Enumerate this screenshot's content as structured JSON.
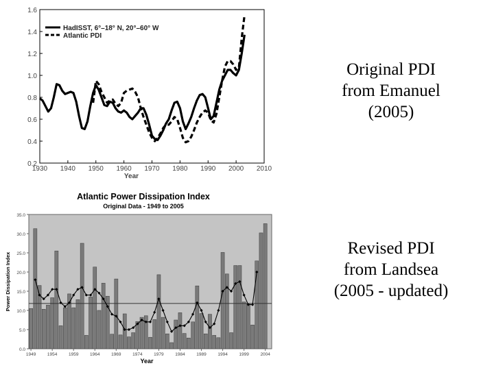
{
  "captions": {
    "top": [
      "Original PDI",
      "from Emanuel",
      "(2005)"
    ],
    "bottom": [
      "Revised PDI",
      "from Landsea",
      "(2005 - updated)"
    ]
  },
  "chart_data": [
    {
      "type": "line",
      "title": "",
      "xlabel": "Year",
      "ylabel": "",
      "xlim": [
        1930,
        2010
      ],
      "ylim": [
        0.2,
        1.6
      ],
      "xticks": [
        "1930",
        "1940",
        "1950",
        "1960",
        "1970",
        "1980",
        "1990",
        "2000",
        "2010"
      ],
      "yticks": [
        "0.2",
        "0.4",
        "0.6",
        "0.8",
        "1.0",
        "1.2",
        "1.4",
        "1.6"
      ],
      "legend_position": "top-left",
      "series": [
        {
          "name": "HadISST, 6°–18° N, 20°–60° W",
          "style": "solid",
          "x": [
            1930,
            1931,
            1932,
            1933,
            1934,
            1935,
            1936,
            1937,
            1938,
            1939,
            1940,
            1941,
            1942,
            1943,
            1944,
            1945,
            1946,
            1947,
            1948,
            1949,
            1950,
            1951,
            1952,
            1953,
            1954,
            1955,
            1956,
            1957,
            1958,
            1959,
            1960,
            1961,
            1962,
            1963,
            1964,
            1965,
            1966,
            1967,
            1968,
            1969,
            1970,
            1971,
            1972,
            1973,
            1974,
            1975,
            1976,
            1977,
            1978,
            1979,
            1980,
            1981,
            1982,
            1983,
            1984,
            1985,
            1986,
            1987,
            1988,
            1989,
            1990,
            1991,
            1992,
            1993,
            1994,
            1995,
            1996,
            1997,
            1998,
            1999,
            2000,
            2001,
            2002,
            2003
          ],
          "y": [
            0.79,
            0.77,
            0.72,
            0.67,
            0.7,
            0.8,
            0.92,
            0.91,
            0.86,
            0.83,
            0.84,
            0.85,
            0.84,
            0.76,
            0.63,
            0.52,
            0.51,
            0.58,
            0.72,
            0.84,
            0.91,
            0.87,
            0.8,
            0.73,
            0.72,
            0.76,
            0.75,
            0.7,
            0.67,
            0.66,
            0.68,
            0.66,
            0.62,
            0.6,
            0.63,
            0.66,
            0.7,
            0.7,
            0.64,
            0.55,
            0.45,
            0.42,
            0.41,
            0.45,
            0.5,
            0.56,
            0.6,
            0.68,
            0.75,
            0.76,
            0.7,
            0.58,
            0.51,
            0.56,
            0.62,
            0.7,
            0.77,
            0.82,
            0.83,
            0.8,
            0.7,
            0.6,
            0.63,
            0.75,
            0.87,
            0.95,
            1.0,
            1.05,
            1.05,
            1.02,
            1.0,
            1.05,
            1.2,
            1.37
          ]
        },
        {
          "name": "Atlantic PDI",
          "style": "dashed",
          "x": [
            1949,
            1950,
            1951,
            1952,
            1953,
            1954,
            1955,
            1956,
            1957,
            1958,
            1959,
            1960,
            1961,
            1962,
            1963,
            1964,
            1965,
            1966,
            1967,
            1968,
            1969,
            1970,
            1971,
            1972,
            1973,
            1974,
            1975,
            1976,
            1977,
            1978,
            1979,
            1980,
            1981,
            1982,
            1983,
            1984,
            1985,
            1986,
            1987,
            1988,
            1989,
            1990,
            1991,
            1992,
            1993,
            1994,
            1995,
            1996,
            1997,
            1998,
            1999,
            2000,
            2001,
            2002,
            2003
          ],
          "y": [
            0.75,
            0.95,
            0.92,
            0.85,
            0.8,
            0.75,
            0.77,
            0.78,
            0.74,
            0.72,
            0.75,
            0.84,
            0.86,
            0.87,
            0.88,
            0.85,
            0.8,
            0.7,
            0.62,
            0.55,
            0.48,
            0.43,
            0.4,
            0.43,
            0.47,
            0.52,
            0.55,
            0.55,
            0.58,
            0.62,
            0.6,
            0.52,
            0.43,
            0.39,
            0.4,
            0.44,
            0.5,
            0.57,
            0.62,
            0.66,
            0.68,
            0.66,
            0.59,
            0.57,
            0.65,
            0.8,
            0.95,
            1.08,
            1.13,
            1.13,
            1.1,
            1.05,
            1.07,
            1.34,
            1.55
          ]
        }
      ]
    },
    {
      "type": "bar",
      "title": "Atlantic Power Dissipation Index",
      "subtitle": "Original Data - 1949 to 2005",
      "xlabel": "Year",
      "ylabel": "Power Dissipation Index",
      "xlim": [
        1949,
        2005
      ],
      "ylim": [
        0,
        35
      ],
      "xticks": [
        "1949",
        "1954",
        "1959",
        "1964",
        "1969",
        "1974",
        "1979",
        "1984",
        "1989",
        "1994",
        "1999",
        "2004"
      ],
      "yticks": [
        "0.0",
        "5.0",
        "10.0",
        "15.0",
        "20.0",
        "25.0",
        "30.0",
        "35.0"
      ],
      "mean_line": 11.8,
      "categories": [
        1949,
        1950,
        1951,
        1952,
        1953,
        1954,
        1955,
        1956,
        1957,
        1958,
        1959,
        1960,
        1961,
        1962,
        1963,
        1964,
        1965,
        1966,
        1967,
        1968,
        1969,
        1970,
        1971,
        1972,
        1973,
        1974,
        1975,
        1976,
        1977,
        1978,
        1979,
        1980,
        1981,
        1982,
        1983,
        1984,
        1985,
        1986,
        1987,
        1988,
        1989,
        1990,
        1991,
        1992,
        1993,
        1994,
        1995,
        1996,
        1997,
        1998,
        1999,
        2000,
        2001,
        2002,
        2003,
        2004,
        2005
      ],
      "series": [
        {
          "name": "",
          "values": [
            10.5,
            31.3,
            16.5,
            10.3,
            11.4,
            13.3,
            25.5,
            6.0,
            10.7,
            14.3,
            10.7,
            12.8,
            27.5,
            3.5,
            13.5,
            21.3,
            10.0,
            17.1,
            13.7,
            3.8,
            18.2,
            3.6,
            9.1,
            3.1,
            4.2,
            7.1,
            8.2,
            8.6,
            3.0,
            7.6,
            19.3,
            8.2,
            3.9,
            1.6,
            7.5,
            9.4,
            4.0,
            2.8,
            7.0,
            16.4,
            9.2,
            3.9,
            9.0,
            3.5,
            2.9,
            25.1,
            19.5,
            4.2,
            21.7,
            21.7,
            12.2,
            11.8,
            6.2,
            22.9,
            30.2,
            32.6,
            null
          ]
        },
        {
          "name": "",
          "style": "smoothed-line-with-diamond-markers",
          "values": [
            null,
            18.0,
            14.0,
            13.0,
            14.0,
            15.5,
            15.5,
            12.0,
            11.0,
            12.0,
            14.0,
            15.5,
            16.0,
            14.0,
            14.0,
            15.5,
            14.5,
            13.0,
            11.0,
            9.0,
            8.5,
            7.0,
            5.0,
            5.0,
            5.5,
            6.5,
            7.5,
            7.0,
            7.0,
            9.5,
            13.0,
            10.0,
            7.0,
            4.5,
            5.5,
            6.0,
            6.0,
            7.0,
            9.0,
            12.0,
            10.0,
            7.0,
            5.5,
            6.5,
            10.0,
            15.0,
            16.0,
            15.0,
            17.0,
            17.5,
            14.0,
            11.5,
            11.5,
            20.0,
            null,
            null,
            null
          ]
        }
      ]
    }
  ]
}
